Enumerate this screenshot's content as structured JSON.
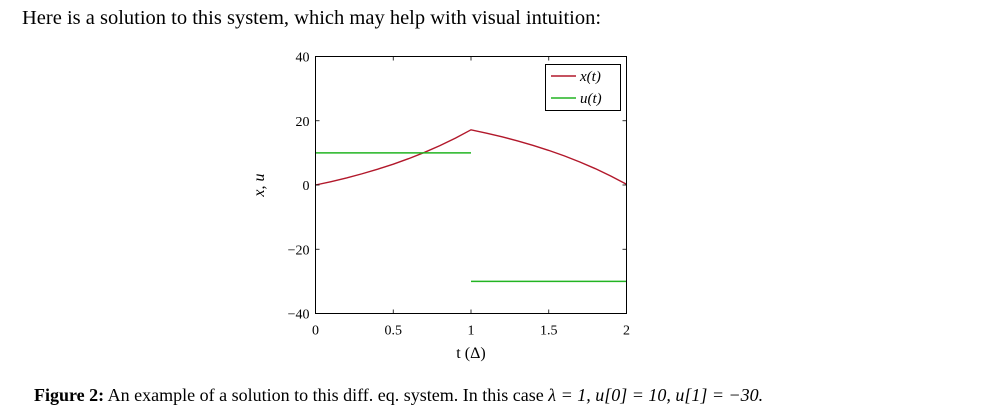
{
  "intro_text": "Here is a solution to this system, which may help with visual intuition:",
  "chart_data": {
    "type": "line",
    "title": "",
    "xlabel": "t (Δ)",
    "ylabel": "x, u",
    "xlim": [
      0,
      2
    ],
    "ylim": [
      -40,
      40
    ],
    "xticks": [
      0,
      0.5,
      1,
      1.5,
      2
    ],
    "xtick_labels": [
      "0",
      "0.5",
      "1",
      "1.5",
      "2"
    ],
    "yticks": [
      -40,
      -20,
      0,
      20,
      40
    ],
    "ytick_labels": [
      "−40",
      "−20",
      "0",
      "20",
      "40"
    ],
    "grid": false,
    "legend_position": "top-right",
    "series": [
      {
        "name": "x(t)",
        "color": "#b2182b",
        "x": [
          0,
          0.1,
          0.2,
          0.3,
          0.4,
          0.5,
          0.6,
          0.7,
          0.8,
          0.9,
          1.0,
          1.1,
          1.2,
          1.3,
          1.4,
          1.5,
          1.6,
          1.7,
          1.8,
          1.9,
          2.0
        ],
        "y": [
          0,
          1.05,
          2.21,
          3.5,
          4.92,
          6.49,
          8.22,
          10.14,
          12.26,
          14.6,
          17.18,
          16.14,
          14.99,
          13.72,
          12.32,
          10.77,
          9.06,
          7.17,
          5.08,
          2.77,
          0.22
        ]
      },
      {
        "name": "u(t)",
        "color": "#22b422",
        "x": [
          0,
          1,
          1,
          2
        ],
        "y": [
          10,
          10,
          -30,
          -30
        ],
        "segments": [
          [
            0,
            1
          ],
          [
            2,
            3
          ]
        ]
      }
    ]
  },
  "caption": {
    "label": "Figure 2:",
    "text_prefix": "An example of a solution to this diff. eq. system. In this case ",
    "math": "λ = 1, u[0] = 10, u[1] = −30."
  }
}
